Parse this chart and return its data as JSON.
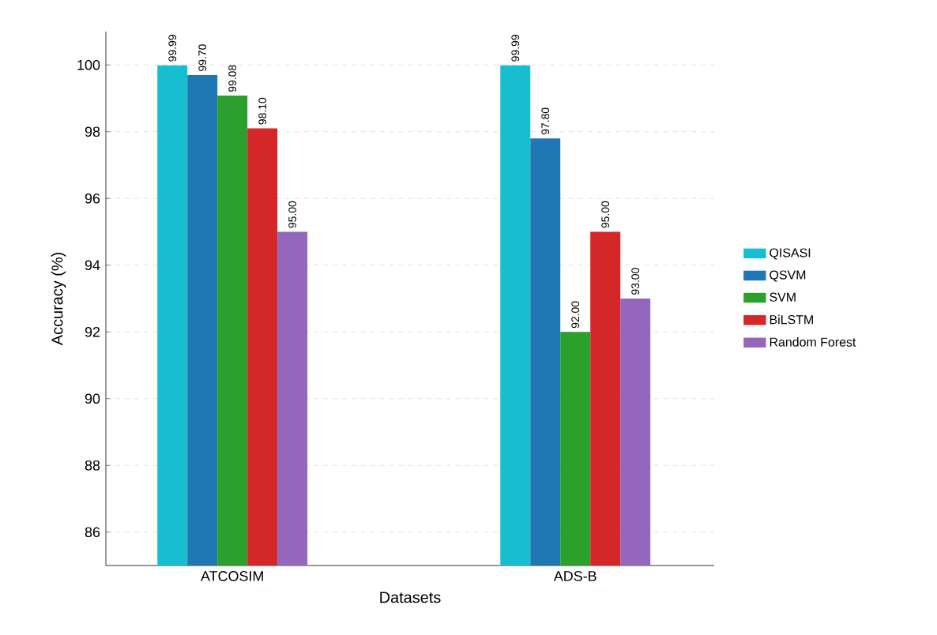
{
  "chart_data": {
    "type": "bar",
    "xlabel": "Datasets",
    "ylabel": "Accuracy (%)",
    "categories": [
      "ATCOSIM",
      "ADS-B"
    ],
    "series": [
      {
        "name": "QISASI",
        "color": "#17becf",
        "values": [
          99.99,
          99.99
        ],
        "value_labels": [
          "99.99",
          "99.99"
        ]
      },
      {
        "name": "QSVM",
        "color": "#1f77b4",
        "values": [
          99.7,
          97.8
        ],
        "value_labels": [
          "99.70",
          "97.80"
        ]
      },
      {
        "name": "SVM",
        "color": "#2ca02c",
        "values": [
          99.08,
          92.0
        ],
        "value_labels": [
          "99.08",
          "92.00"
        ]
      },
      {
        "name": "BiLSTM",
        "color": "#d62728",
        "values": [
          98.1,
          95.0
        ],
        "value_labels": [
          "98.10",
          "95.00"
        ]
      },
      {
        "name": "Random Forest",
        "color": "#9467bd",
        "values": [
          95.0,
          93.0
        ],
        "value_labels": [
          "95.00",
          "93.00"
        ]
      }
    ],
    "ylim": [
      85,
      101
    ],
    "yticks": [
      86,
      88,
      90,
      92,
      94,
      96,
      98,
      100
    ],
    "grid": "y",
    "legend": "right"
  }
}
